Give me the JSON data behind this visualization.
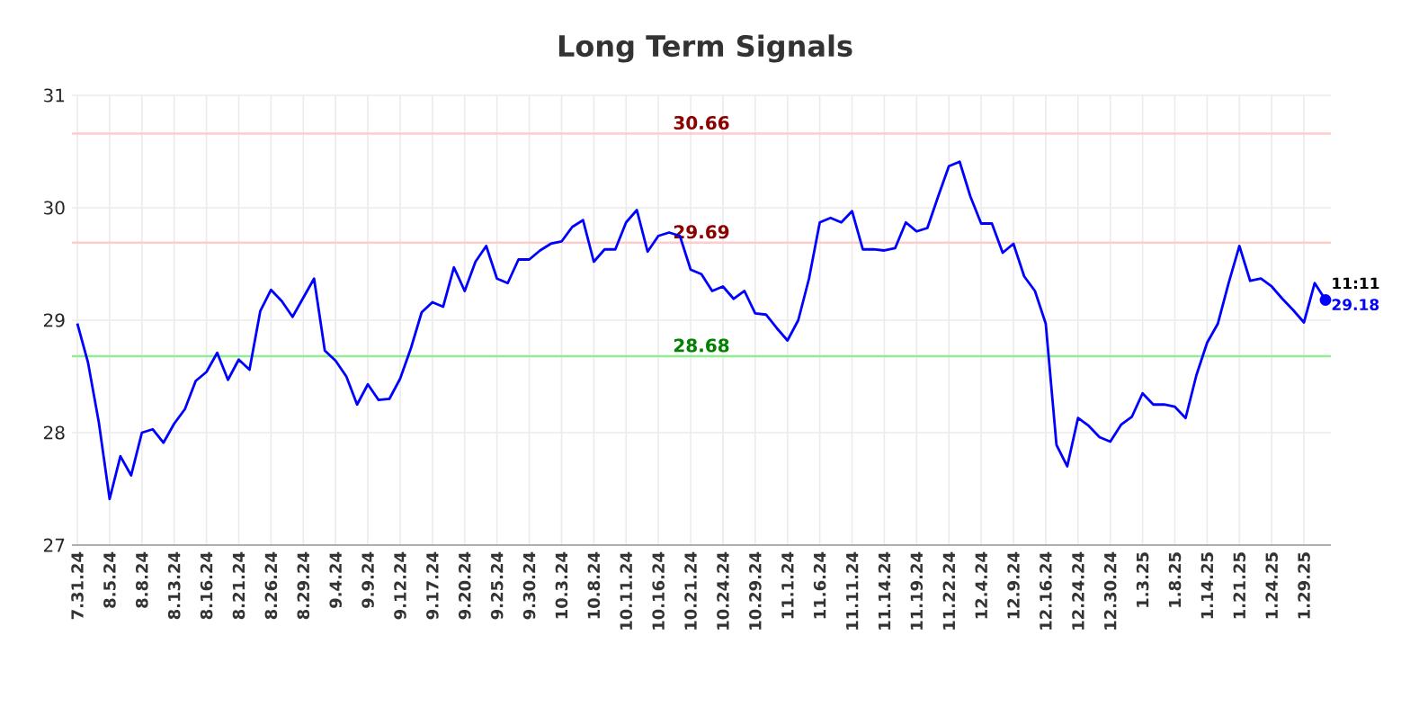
{
  "chart_data": {
    "type": "line",
    "title": "Long Term Signals",
    "categories": [
      "7.31.24",
      null,
      null,
      "8.5.24",
      null,
      null,
      "8.8.24",
      null,
      null,
      "8.13.24",
      null,
      null,
      "8.16.24",
      null,
      null,
      "8.21.24",
      null,
      null,
      "8.26.24",
      null,
      null,
      "8.29.24",
      null,
      null,
      "9.4.24",
      null,
      null,
      "9.9.24",
      null,
      null,
      "9.12.24",
      null,
      null,
      "9.17.24",
      null,
      null,
      "9.20.24",
      null,
      null,
      "9.25.24",
      null,
      null,
      "9.30.24",
      null,
      null,
      "10.3.24",
      null,
      null,
      "10.8.24",
      null,
      null,
      "10.11.24",
      null,
      null,
      "10.16.24",
      null,
      null,
      "10.21.24",
      null,
      null,
      "10.24.24",
      null,
      null,
      "10.29.24",
      null,
      null,
      "11.1.24",
      null,
      null,
      "11.6.24",
      null,
      null,
      "11.11.24",
      null,
      null,
      "11.14.24",
      null,
      null,
      "11.19.24",
      null,
      null,
      "11.22.24",
      null,
      null,
      "12.4.24",
      null,
      null,
      "12.9.24",
      null,
      null,
      "12.16.24",
      null,
      null,
      "12.24.24",
      null,
      null,
      "12.30.24",
      null,
      null,
      "1.3.25",
      null,
      null,
      "1.8.25",
      null,
      null,
      "1.14.25",
      null,
      null,
      "1.21.25",
      null,
      null,
      "1.24.25",
      null,
      null,
      "1.29.25",
      null,
      null
    ],
    "series": [
      {
        "color": "#0000ff",
        "values": [
          28.97,
          28.62,
          28.09,
          27.41,
          27.79,
          27.62,
          28.0,
          28.03,
          27.91,
          28.08,
          28.21,
          28.46,
          28.54,
          28.71,
          28.47,
          28.65,
          28.56,
          29.08,
          29.27,
          29.17,
          29.03,
          29.2,
          29.37,
          28.73,
          28.64,
          28.5,
          28.25,
          28.43,
          28.29,
          28.3,
          28.48,
          28.75,
          29.07,
          29.16,
          29.12,
          29.47,
          29.26,
          29.52,
          29.66,
          29.37,
          29.33,
          29.54,
          29.54,
          29.62,
          29.68,
          29.7,
          29.83,
          29.89,
          29.52,
          29.63,
          29.63,
          29.87,
          29.98,
          29.61,
          29.75,
          29.78,
          29.75,
          29.45,
          29.41,
          29.26,
          29.3,
          29.19,
          29.26,
          29.06,
          29.05,
          28.93,
          28.82,
          29.0,
          29.37,
          29.87,
          29.91,
          29.87,
          29.97,
          29.63,
          29.63,
          29.62,
          29.64,
          29.87,
          29.79,
          29.82,
          30.1,
          30.37,
          30.41,
          30.1,
          29.86,
          29.86,
          29.6,
          29.68,
          29.39,
          29.26,
          28.97,
          27.89,
          27.7,
          28.13,
          28.06,
          27.96,
          27.92,
          28.07,
          28.14,
          28.35,
          28.25,
          28.25,
          28.23,
          28.13,
          28.51,
          28.8,
          28.97,
          29.33,
          29.66,
          29.35,
          29.37,
          29.3,
          29.19,
          29.09,
          28.98,
          29.33,
          29.18
        ]
      }
    ],
    "ylim": [
      27,
      31
    ],
    "yticks": [
      27,
      28,
      29,
      30,
      31
    ],
    "grid": true,
    "line_style": "solid",
    "ref_lines": [
      {
        "axis": "y",
        "value": 30.66,
        "label": "30.66",
        "color": "#ffcccc"
      },
      {
        "axis": "y",
        "value": 29.69,
        "label": "29.69",
        "color": "#ffcccc"
      },
      {
        "axis": "y",
        "value": 28.68,
        "label": "28.68",
        "color": "#90ee90"
      }
    ],
    "annotations": [
      "11:11",
      "29.18"
    ]
  }
}
